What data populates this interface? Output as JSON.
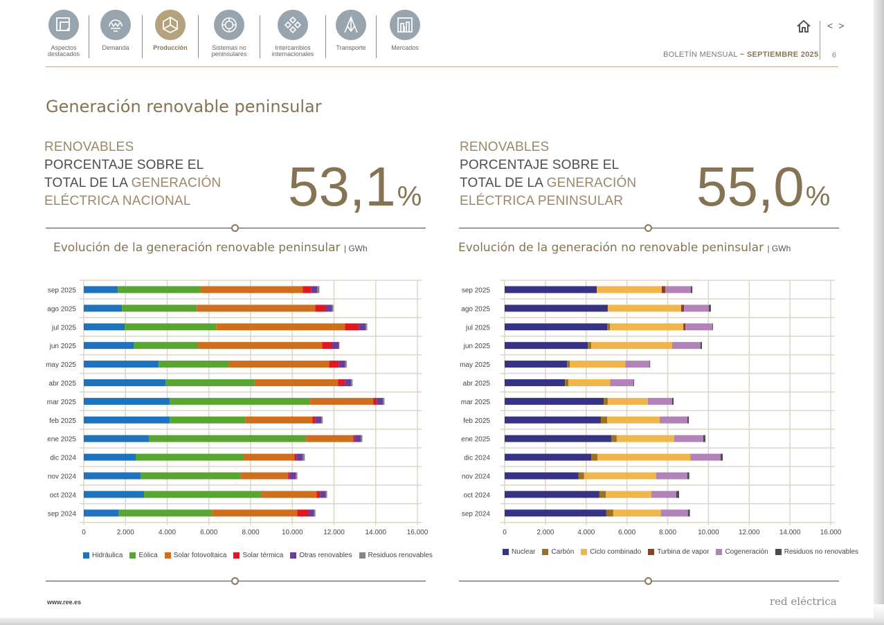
{
  "nav": {
    "items": [
      {
        "label_1": "Aspectos",
        "label_2": "destacados",
        "icon": "document-icon",
        "active": false
      },
      {
        "label_1": "Demanda",
        "label_2": "",
        "icon": "lightbulb-icon",
        "active": false
      },
      {
        "label_1": "Producción",
        "label_2": "",
        "icon": "cube-icon",
        "active": true
      },
      {
        "label_1": "Sistemas no",
        "label_2": "peninsulares",
        "icon": "target-icon",
        "active": false
      },
      {
        "label_1": "Intercambios",
        "label_2": "internacionales",
        "icon": "exchange-icon",
        "active": false
      },
      {
        "label_1": "Transporte",
        "label_2": "",
        "icon": "tower-icon",
        "active": false
      },
      {
        "label_1": "Mercados",
        "label_2": "",
        "icon": "bar-chart-icon",
        "active": false
      }
    ]
  },
  "header": {
    "bulletin": "BOLETÍN MENSUAL",
    "separator": "~",
    "month": "SEPTIEMBRE 2025",
    "page": "6",
    "prev": "<",
    "next": ">"
  },
  "title": "Generación renovable peninsular",
  "kpis": [
    {
      "line1": "RENOVABLES",
      "line2": "PORCENTAJE SOBRE EL",
      "line3a": "TOTAL DE LA ",
      "line3b": "GENERACIÓN",
      "line4": "ELÉCTRICA NACIONAL",
      "value": "53,1",
      "unit": "%"
    },
    {
      "line1": "RENOVABLES",
      "line2": "PORCENTAJE SOBRE EL",
      "line3a": "TOTAL DE LA ",
      "line3b": "GENERACIÓN",
      "line4": "ELÉCTRICA PENINSULAR",
      "value": "55,0",
      "unit": "%"
    }
  ],
  "chart_data": [
    {
      "type": "bar",
      "orientation": "horizontal",
      "stacked": true,
      "title": "Evolución de la generación renovable peninsular",
      "unit": "GWh",
      "categories": [
        "sep 2025",
        "ago 2025",
        "jul 2025",
        "jun 2025",
        "may 2025",
        "abr 2025",
        "mar 2025",
        "feb 2025",
        "ene 2025",
        "dic 2024",
        "nov 2024",
        "oct 2024",
        "sep 2024"
      ],
      "xlim": [
        0,
        16000
      ],
      "xticks": [
        0,
        2000,
        4000,
        6000,
        8000,
        10000,
        12000,
        14000,
        16000
      ],
      "xtick_labels": [
        "0",
        "2.000",
        "4.000",
        "6.000",
        "8.000",
        "10.000",
        "12.000",
        "14.000",
        "16.000"
      ],
      "grid": true,
      "legend_position": "bottom",
      "series": [
        {
          "name": "Hidráulica",
          "color": "#1f72bd",
          "values": [
            1630,
            1830,
            1960,
            2390,
            3590,
            3920,
            4120,
            4120,
            3120,
            2490,
            2720,
            2890,
            1660
          ]
        },
        {
          "name": "Eólica",
          "color": "#59a532",
          "values": [
            3950,
            3590,
            4390,
            3090,
            3360,
            4250,
            6740,
            3620,
            7540,
            5180,
            4820,
            5610,
            4490
          ]
        },
        {
          "name": "Solar fotovoltaica",
          "color": "#cf6e1c",
          "values": [
            4920,
            5680,
            6180,
            5950,
            4820,
            4020,
            3020,
            3220,
            2260,
            2430,
            2260,
            2660,
            4090
          ]
        },
        {
          "name": "Solar térmica",
          "color": "#e3171f",
          "values": [
            400,
            500,
            660,
            470,
            470,
            330,
            170,
            130,
            70,
            100,
            70,
            170,
            530
          ]
        },
        {
          "name": "Otras renovables",
          "color": "#6b3d99",
          "values": [
            300,
            300,
            330,
            330,
            300,
            300,
            300,
            300,
            300,
            300,
            300,
            270,
            270
          ]
        },
        {
          "name": "Residuos renovables",
          "color": "#85868a",
          "values": [
            100,
            70,
            70,
            30,
            70,
            70,
            70,
            70,
            70,
            100,
            70,
            70,
            70
          ]
        }
      ]
    },
    {
      "type": "bar",
      "orientation": "horizontal",
      "stacked": true,
      "title": "Evolución de la generación no renovable peninsular",
      "unit": "GWh",
      "categories": [
        "sep 2025",
        "ago 2025",
        "jul 2025",
        "jun 2025",
        "may 2025",
        "abr 2025",
        "mar 2025",
        "feb 2025",
        "ene 2025",
        "dic 2024",
        "nov 2024",
        "oct 2024",
        "sep 2024"
      ],
      "xlim": [
        0,
        16000
      ],
      "xticks": [
        0,
        2000,
        4000,
        6000,
        8000,
        10000,
        12000,
        14000,
        16000
      ],
      "xtick_labels": [
        "0",
        "2.000",
        "4.000",
        "6.000",
        "8.000",
        "10.000",
        "12.000",
        "14.000",
        "16.000"
      ],
      "grid": true,
      "legend_position": "bottom",
      "series": [
        {
          "name": "Nuclear",
          "color": "#363385",
          "values": [
            4520,
            5060,
            5030,
            4080,
            3060,
            2960,
            4860,
            4720,
            5230,
            4250,
            3630,
            4650,
            4990
          ]
        },
        {
          "name": "Carbón",
          "color": "#9a7222",
          "values": [
            0,
            0,
            140,
            170,
            140,
            170,
            200,
            310,
            270,
            310,
            270,
            310,
            340
          ]
        },
        {
          "name": "Ciclo combinado",
          "color": "#f0b54b",
          "values": [
            3190,
            3600,
            3600,
            3970,
            2720,
            2040,
            1970,
            2580,
            2820,
            4550,
            3530,
            2240,
            2340
          ]
        },
        {
          "name": "Turbina de vapor",
          "color": "#8e4022",
          "values": [
            170,
            140,
            100,
            0,
            0,
            0,
            0,
            0,
            0,
            0,
            0,
            0,
            0
          ]
        },
        {
          "name": "Cogeneración",
          "color": "#b183b9",
          "values": [
            1260,
            1220,
            1320,
            1390,
            1190,
            1150,
            1190,
            1360,
            1430,
            1490,
            1530,
            1220,
            1320
          ]
        },
        {
          "name": "Residuos no renovables",
          "color": "#4a4a4f",
          "values": [
            70,
            100,
            30,
            70,
            30,
            30,
            70,
            70,
            100,
            100,
            100,
            140,
            100
          ]
        }
      ]
    }
  ],
  "footer": {
    "url": "www.ree.es",
    "brand": "red eléctrica"
  }
}
